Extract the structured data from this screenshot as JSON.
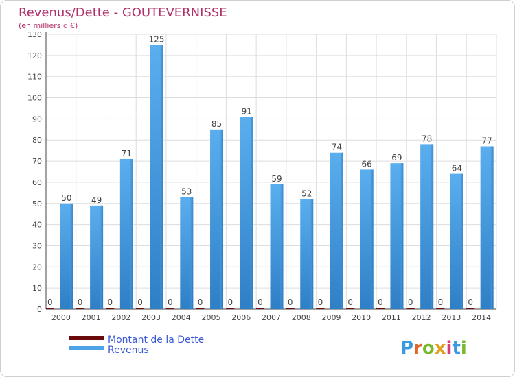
{
  "chart_data": {
    "type": "bar",
    "title": "Revenus/Dette - GOUTEVERNISSE",
    "subtitle": "(en milliers d'€)",
    "categories": [
      "2000",
      "2001",
      "2002",
      "2003",
      "2004",
      "2005",
      "2006",
      "2007",
      "2008",
      "2009",
      "2010",
      "2011",
      "2012",
      "2013",
      "2014"
    ],
    "series": [
      {
        "name": "Montant de la Dette",
        "color": "#6b0a0a",
        "values": [
          0,
          0,
          0,
          0,
          0,
          0,
          0,
          0,
          0,
          0,
          0,
          0,
          0,
          0,
          0
        ]
      },
      {
        "name": "Revenus",
        "color": "#4ea2e6",
        "values": [
          50,
          49,
          71,
          125,
          53,
          85,
          91,
          59,
          52,
          74,
          66,
          69,
          78,
          64,
          77
        ]
      }
    ],
    "ylim": [
      0,
      130
    ],
    "yticks": [
      0,
      10,
      20,
      30,
      40,
      50,
      60,
      70,
      80,
      90,
      100,
      110,
      120,
      130
    ],
    "grid": true,
    "legend": "bottom-left"
  },
  "logo": {
    "text": "Proxiti"
  }
}
